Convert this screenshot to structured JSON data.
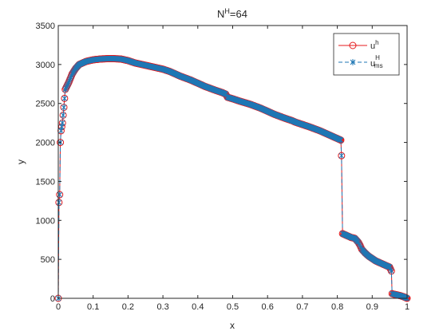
{
  "chart_data": {
    "type": "line",
    "title_main": "N",
    "title_sup": "H",
    "title_rest": "=64",
    "xlabel": "x",
    "ylabel": "y",
    "xlim": [
      0,
      1
    ],
    "ylim": [
      0,
      3500
    ],
    "x_ticks": [
      0,
      0.1,
      0.2,
      0.3,
      0.4,
      0.5,
      0.6,
      0.7,
      0.8,
      0.9,
      1
    ],
    "x_tick_labels": [
      "0",
      "0.1",
      "0.2",
      "0.3",
      "0.4",
      "0.5",
      "0.6",
      "0.7",
      "0.8",
      "0.9",
      "1"
    ],
    "y_ticks": [
      0,
      500,
      1000,
      1500,
      2000,
      2500,
      3000,
      3500
    ],
    "y_tick_labels": [
      "0",
      "500",
      "1000",
      "1500",
      "2000",
      "2500",
      "3000",
      "3500"
    ],
    "grid": false,
    "legend_position": "top-right",
    "series": [
      {
        "name_main": "u",
        "name_sup": "h",
        "name_sub": "",
        "color": "#e5191c",
        "line_style": "solid",
        "marker": "circle",
        "x": [
          0,
          0.002,
          0.004,
          0.006,
          0.008,
          0.012,
          0.016,
          0.02,
          0.03,
          0.04,
          0.05,
          0.06,
          0.08,
          0.1,
          0.12,
          0.14,
          0.16,
          0.18,
          0.2,
          0.22,
          0.25,
          0.28,
          0.3,
          0.32,
          0.35,
          0.38,
          0.4,
          0.42,
          0.45,
          0.47,
          0.48,
          0.485,
          0.5,
          0.52,
          0.55,
          0.58,
          0.6,
          0.62,
          0.65,
          0.67,
          0.68,
          0.7,
          0.72,
          0.75,
          0.78,
          0.8,
          0.81,
          0.812,
          0.815,
          0.82,
          0.83,
          0.84,
          0.85,
          0.86,
          0.865,
          0.87,
          0.88,
          0.89,
          0.9,
          0.91,
          0.92,
          0.93,
          0.94,
          0.95,
          0.955,
          0.957,
          0.96,
          0.97,
          0.98,
          0.99,
          1.0
        ],
        "y": [
          0,
          1230,
          1330,
          2000,
          2150,
          2250,
          2450,
          2680,
          2770,
          2880,
          2950,
          3000,
          3040,
          3060,
          3070,
          3075,
          3075,
          3070,
          3050,
          3020,
          2990,
          2960,
          2940,
          2910,
          2850,
          2800,
          2760,
          2720,
          2670,
          2640,
          2620,
          2580,
          2560,
          2530,
          2490,
          2440,
          2400,
          2360,
          2310,
          2280,
          2260,
          2230,
          2200,
          2150,
          2090,
          2050,
          2030,
          1830,
          830,
          820,
          800,
          780,
          770,
          720,
          680,
          630,
          580,
          540,
          510,
          480,
          460,
          440,
          420,
          400,
          350,
          60,
          55,
          45,
          35,
          20,
          0
        ]
      },
      {
        "name_main": "u",
        "name_sup": "H",
        "name_sub": "ms",
        "color": "#1f77b4",
        "line_style": "dashed",
        "marker": "star",
        "x": [
          0,
          0.002,
          0.004,
          0.006,
          0.008,
          0.012,
          0.016,
          0.02,
          0.03,
          0.04,
          0.05,
          0.06,
          0.08,
          0.1,
          0.12,
          0.14,
          0.16,
          0.18,
          0.2,
          0.22,
          0.25,
          0.28,
          0.3,
          0.32,
          0.35,
          0.38,
          0.4,
          0.42,
          0.45,
          0.47,
          0.48,
          0.485,
          0.5,
          0.52,
          0.55,
          0.58,
          0.6,
          0.62,
          0.65,
          0.67,
          0.68,
          0.7,
          0.72,
          0.75,
          0.78,
          0.8,
          0.81,
          0.812,
          0.815,
          0.82,
          0.83,
          0.84,
          0.85,
          0.86,
          0.865,
          0.87,
          0.88,
          0.89,
          0.9,
          0.91,
          0.92,
          0.93,
          0.94,
          0.95,
          0.955,
          0.957,
          0.96,
          0.97,
          0.98,
          0.99,
          1.0
        ],
        "y": [
          0,
          1230,
          1330,
          2000,
          2150,
          2250,
          2450,
          2680,
          2770,
          2880,
          2950,
          3000,
          3040,
          3060,
          3070,
          3075,
          3075,
          3070,
          3050,
          3020,
          2990,
          2960,
          2940,
          2910,
          2850,
          2800,
          2760,
          2720,
          2670,
          2640,
          2620,
          2580,
          2560,
          2530,
          2490,
          2440,
          2400,
          2360,
          2310,
          2280,
          2260,
          2230,
          2200,
          2150,
          2090,
          2050,
          2030,
          1830,
          830,
          820,
          800,
          780,
          770,
          720,
          680,
          630,
          580,
          540,
          510,
          480,
          460,
          440,
          420,
          400,
          350,
          60,
          55,
          45,
          35,
          20,
          0
        ]
      }
    ]
  }
}
